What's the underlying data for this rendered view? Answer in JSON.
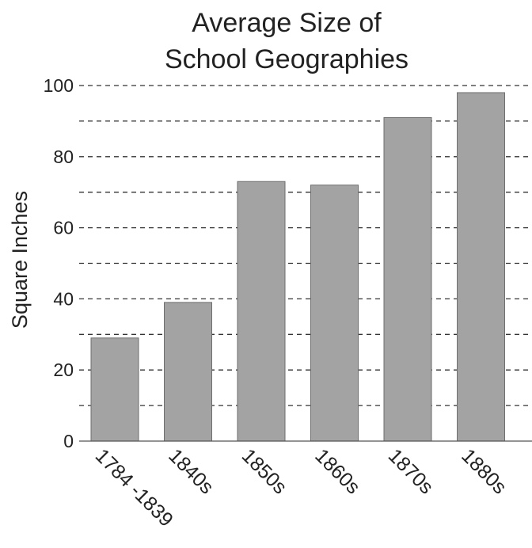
{
  "chart_data": {
    "type": "bar",
    "title": [
      "Average Size of",
      "School Geographies"
    ],
    "xlabel": "",
    "ylabel": "Square Inches",
    "categories": [
      "1784 -1839",
      "1840s",
      "1850s",
      "1860s",
      "1870s",
      "1880s"
    ],
    "values": [
      29,
      39,
      73,
      72,
      91,
      98
    ],
    "ylim": [
      0,
      100
    ],
    "yticks": [
      0,
      20,
      40,
      60,
      80,
      100
    ],
    "minor_gridlines": [
      10,
      30,
      50,
      70,
      90
    ],
    "grid": true,
    "grid_style": "dashed",
    "legend": "none",
    "colors": {
      "bar": "#a3a3a3",
      "bar_edge": "#6e6e6e",
      "text": "#222222",
      "grid": "#333333"
    }
  }
}
